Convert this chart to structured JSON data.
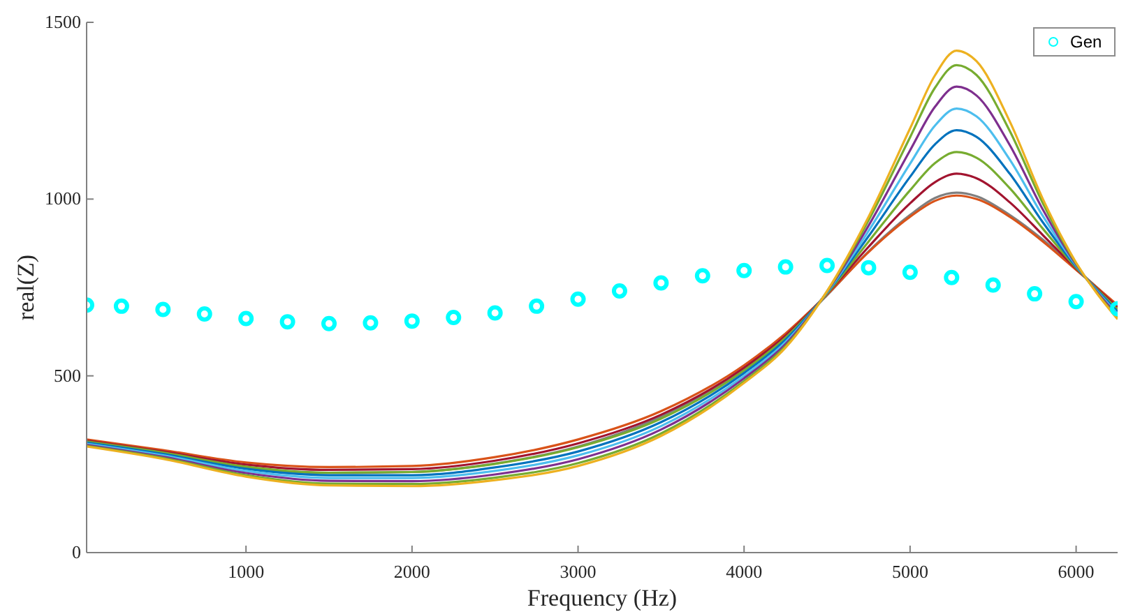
{
  "chart_data": {
    "type": "line",
    "xlabel": "Frequency (Hz)",
    "ylabel": "real(Z)",
    "xlim": [
      40,
      6250
    ],
    "ylim": [
      0,
      1500
    ],
    "xticks": [
      1000,
      2000,
      3000,
      4000,
      5000,
      6000
    ],
    "yticks": [
      0,
      500,
      1000,
      1500
    ],
    "grid": false,
    "legend": "top right",
    "marker": "none",
    "line_style": "solid",
    "x": [
      40,
      500,
      1000,
      1500,
      2000,
      2500,
      3000,
      3500,
      4000,
      4250,
      4500,
      4750,
      5000,
      5150,
      5280,
      5400,
      5600,
      5800,
      6000,
      6250
    ],
    "series": [
      {
        "color": "#7f7f7f",
        "values": [
          303,
          275,
          240,
          225,
          228,
          252,
          300,
          385,
          520,
          612,
          728,
          852,
          955,
          1003,
          1018,
          1008,
          955,
          885,
          803,
          698
        ]
      },
      {
        "color": "#d95319",
        "values": [
          320,
          290,
          255,
          242,
          245,
          270,
          320,
          400,
          530,
          620,
          730,
          850,
          950,
          995,
          1010,
          1000,
          950,
          880,
          800,
          700
        ]
      },
      {
        "color": "#a2142f",
        "values": [
          317,
          286,
          249,
          234,
          236,
          260,
          309,
          390,
          523,
          614,
          732,
          865,
          988,
          1048,
          1072,
          1059,
          991,
          898,
          803,
          694
        ]
      },
      {
        "color": "#77ac30",
        "values": [
          314,
          283,
          243,
          226,
          228,
          251,
          298,
          379,
          515,
          608,
          733,
          880,
          1025,
          1102,
          1133,
          1117,
          1031,
          916,
          806,
          688
        ]
      },
      {
        "color": "#0072bd",
        "values": [
          311,
          279,
          237,
          219,
          219,
          241,
          286,
          369,
          508,
          602,
          735,
          895,
          1063,
          1155,
          1195,
          1176,
          1072,
          934,
          809,
          682
        ]
      },
      {
        "color": "#4dbeee",
        "values": [
          308,
          275,
          231,
          211,
          211,
          231,
          275,
          358,
          500,
          596,
          736,
          910,
          1100,
          1208,
          1256,
          1234,
          1112,
          952,
          812,
          676
        ]
      },
      {
        "color": "#7e2f8e",
        "values": [
          305,
          271,
          225,
          203,
          202,
          221,
          264,
          348,
          493,
          590,
          738,
          925,
          1138,
          1261,
          1318,
          1293,
          1153,
          970,
          815,
          670
        ]
      },
      {
        "color": "#77ac30",
        "values": [
          302,
          268,
          219,
          195,
          194,
          212,
          253,
          337,
          485,
          584,
          739,
          940,
          1175,
          1315,
          1379,
          1351,
          1193,
          988,
          818,
          664
        ]
      },
      {
        "color": "#edb120",
        "values": [
          300,
          265,
          215,
          190,
          188,
          205,
          245,
          330,
          480,
          580,
          740,
          950,
          1200,
          1350,
          1420,
          1390,
          1220,
          1000,
          820,
          660
        ]
      },
      {
        "name": "Gen",
        "type": "scatter",
        "marker": "circle",
        "color": "#00ffff",
        "x": [
          40,
          250,
          500,
          750,
          1000,
          1250,
          1500,
          1750,
          2000,
          2250,
          2500,
          2750,
          3000,
          3250,
          3500,
          3750,
          4000,
          4250,
          4500,
          4750,
          5000,
          5250,
          5500,
          5750,
          6000,
          6250
        ],
        "values": [
          700,
          697,
          688,
          675,
          662,
          653,
          648,
          650,
          655,
          665,
          678,
          697,
          717,
          740,
          763,
          783,
          798,
          808,
          812,
          806,
          793,
          778,
          757,
          732,
          710,
          690
        ]
      }
    ]
  }
}
